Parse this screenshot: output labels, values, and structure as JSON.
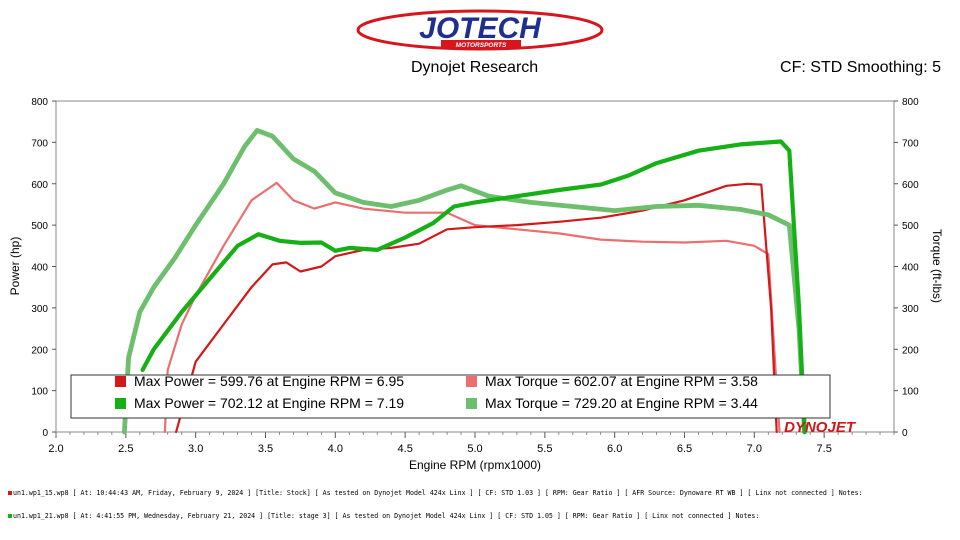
{
  "header": {
    "logo_text": "JOTECH",
    "logo_subtext": "MOTORSPORTS",
    "subtitle": "Dynojet Research",
    "cf_label": "CF: STD Smoothing: 5"
  },
  "watermark": "DYNOJET",
  "colors": {
    "stock_power": "#d11919",
    "stock_torque": "#eb6f6f",
    "stage3_power": "#16b016",
    "stage3_torque": "#6dbf6d",
    "plot_bg": "#ffffff",
    "frame_bg": "#ffffff"
  },
  "chart_data": {
    "type": "line",
    "xlabel": "Engine RPM (rpmx1000)",
    "ylabel": "Power (hp)",
    "y2label": "Torque (ft-lbs)",
    "xlim": [
      2.0,
      8.0
    ],
    "ylim": [
      0,
      800
    ],
    "y2lim": [
      0,
      800
    ],
    "xticks": [
      "2.0",
      "2.5",
      "3.0",
      "3.5",
      "4.0",
      "4.5",
      "5.0",
      "5.5",
      "6.0",
      "6.5",
      "7.0",
      "7.5"
    ],
    "yticks": [
      "0",
      "100",
      "200",
      "300",
      "400",
      "500",
      "600",
      "700",
      "800"
    ],
    "grid": false,
    "legend_position": "bottom",
    "series": [
      {
        "key": "stock_power",
        "axis": "left",
        "legend": "Max Power = 599.76 at Engine RPM = 6.95",
        "x": [
          2.86,
          3.0,
          3.2,
          3.4,
          3.55,
          3.65,
          3.75,
          3.9,
          4.0,
          4.2,
          4.4,
          4.6,
          4.8,
          5.0,
          5.3,
          5.6,
          5.9,
          6.2,
          6.5,
          6.8,
          6.95,
          7.05,
          7.12,
          7.16
        ],
        "y": [
          0,
          170,
          260,
          350,
          405,
          410,
          388,
          400,
          425,
          440,
          445,
          455,
          490,
          495,
          500,
          508,
          518,
          535,
          560,
          595,
          600,
          598,
          300,
          0
        ]
      },
      {
        "key": "stock_torque",
        "axis": "right",
        "legend": "Max Torque = 602.07 at Engine RPM = 3.58",
        "x": [
          2.78,
          2.8,
          2.9,
          3.0,
          3.2,
          3.4,
          3.58,
          3.7,
          3.85,
          4.0,
          4.2,
          4.5,
          4.8,
          5.0,
          5.3,
          5.6,
          5.9,
          6.2,
          6.5,
          6.8,
          7.0,
          7.1,
          7.15,
          7.18
        ],
        "y": [
          0,
          150,
          260,
          330,
          450,
          560,
          602,
          560,
          540,
          555,
          540,
          530,
          530,
          500,
          490,
          480,
          465,
          460,
          458,
          462,
          450,
          430,
          160,
          0
        ]
      },
      {
        "key": "stage3_power",
        "axis": "left",
        "legend": "Max Power = 702.12 at Engine RPM = 7.19",
        "x": [
          2.62,
          2.7,
          2.9,
          3.1,
          3.3,
          3.45,
          3.6,
          3.75,
          3.9,
          4.0,
          4.1,
          4.3,
          4.5,
          4.7,
          4.85,
          5.0,
          5.3,
          5.6,
          5.9,
          6.1,
          6.3,
          6.6,
          6.9,
          7.1,
          7.19,
          7.25,
          7.32,
          7.36
        ],
        "y": [
          150,
          200,
          290,
          370,
          450,
          478,
          462,
          457,
          458,
          438,
          445,
          440,
          470,
          505,
          545,
          555,
          570,
          585,
          598,
          620,
          650,
          680,
          695,
          700,
          702,
          680,
          300,
          0
        ]
      },
      {
        "key": "stage3_torque",
        "axis": "right",
        "legend": "Max Torque = 729.20 at Engine RPM = 3.44",
        "x": [
          2.49,
          2.52,
          2.6,
          2.7,
          2.85,
          3.0,
          3.2,
          3.35,
          3.44,
          3.55,
          3.7,
          3.85,
          4.0,
          4.2,
          4.4,
          4.6,
          4.8,
          4.9,
          5.1,
          5.4,
          5.7,
          6.0,
          6.3,
          6.6,
          6.9,
          7.1,
          7.25,
          7.32,
          7.36
        ],
        "y": [
          0,
          180,
          290,
          350,
          420,
          500,
          600,
          690,
          729,
          715,
          660,
          630,
          578,
          555,
          545,
          560,
          585,
          595,
          570,
          555,
          545,
          535,
          545,
          548,
          538,
          525,
          500,
          250,
          0
        ]
      }
    ]
  },
  "footer": {
    "run1": "un1.wp1_15.wp8 [ At: 10:44:43 AM, Friday, February 9, 2024 ] [Title: Stock]  [ As tested on Dynojet Model 424x Linx ] [ CF: STD 1.03 ] [ RPM: Gear Ratio ] [ AFR Source: Dynoware RT WB ] [ Linx not connected ] Notes:",
    "run2": "un1.wp1_21.wp8 [ At: 4:41:55 PM, Wednesday, February 21, 2024 ] [Title: stage 3]  [ As tested on Dynojet Model 424x Linx ] [ CF: STD 1.05 ] [ RPM: Gear Ratio ] [ Linx not connected ] Notes:"
  }
}
